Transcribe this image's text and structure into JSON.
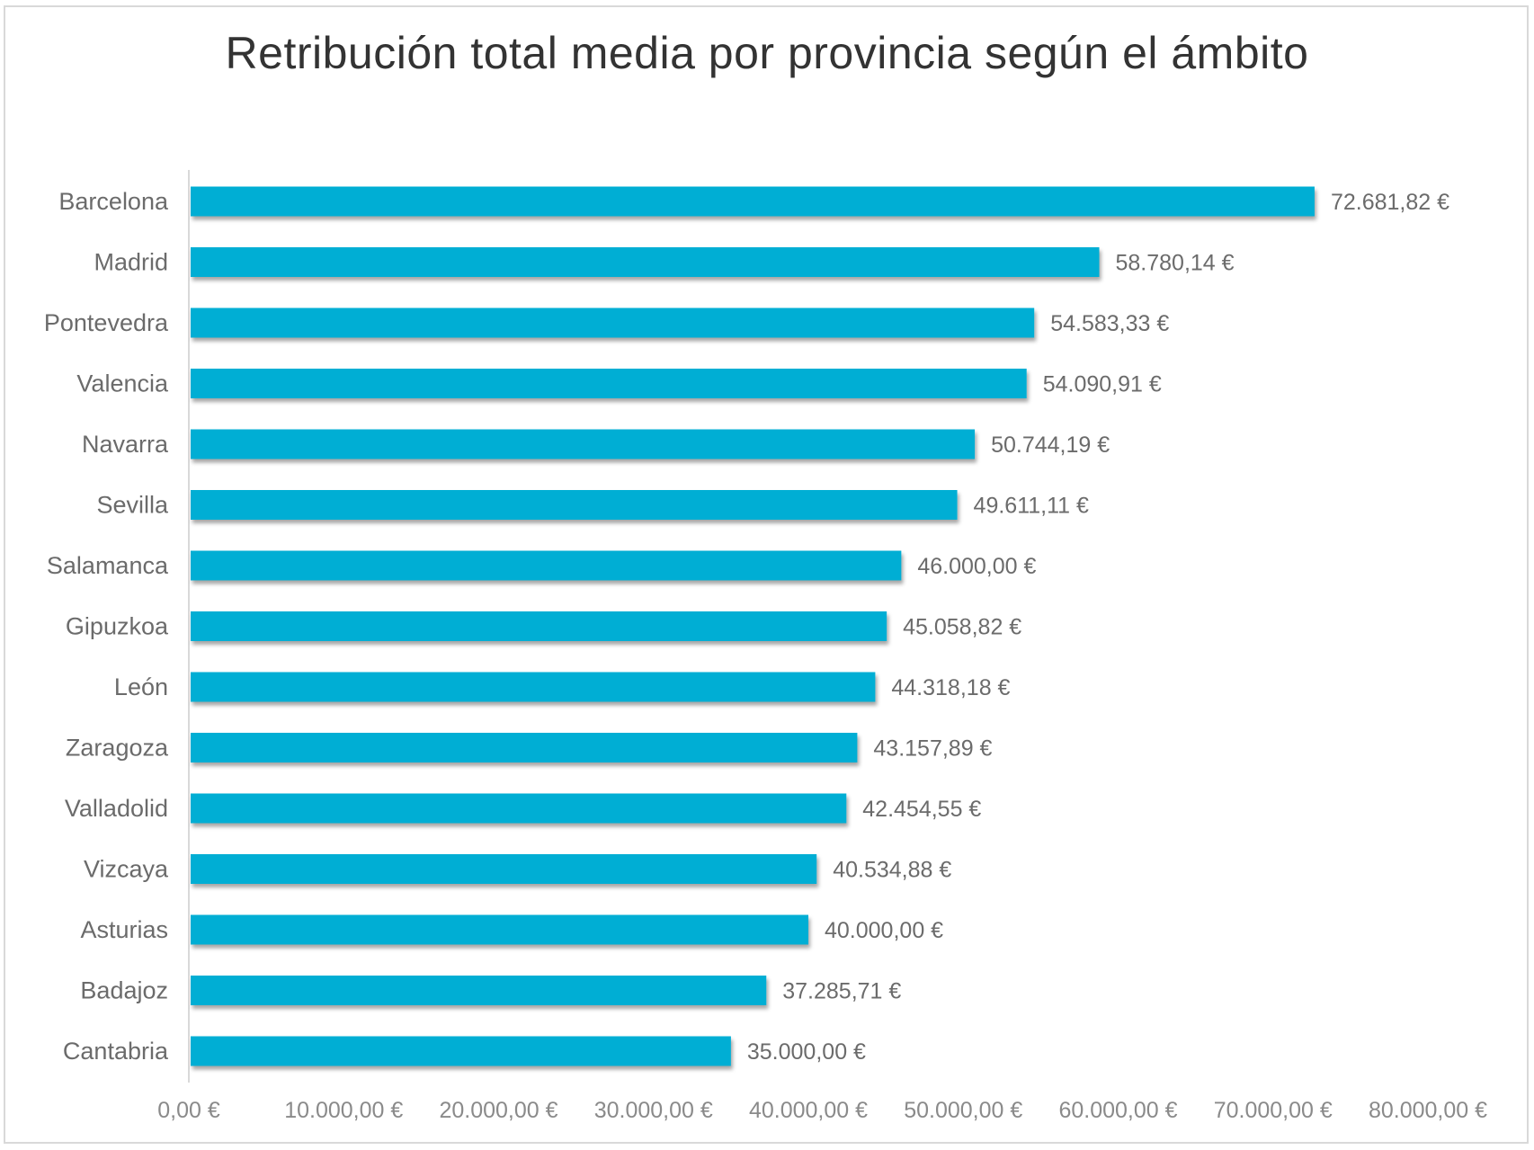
{
  "chart_data": {
    "type": "bar",
    "orientation": "horizontal",
    "title": "Retribución total media por provincia según el ámbito",
    "categories": [
      "Barcelona",
      "Madrid",
      "Pontevedra",
      "Valencia",
      "Navarra",
      "Sevilla",
      "Salamanca",
      "Gipuzkoa",
      "León",
      "Zaragoza",
      "Valladolid",
      "Vizcaya",
      "Asturias",
      "Badajoz",
      "Cantabria"
    ],
    "values": [
      72681.82,
      58780.14,
      54583.33,
      54090.91,
      50744.19,
      49611.11,
      46000.0,
      45058.82,
      44318.18,
      43157.89,
      42454.55,
      40534.88,
      40000.0,
      37285.71,
      35000.0
    ],
    "value_labels": [
      "72.681,82 €",
      "58.780,14 €",
      "54.583,33 €",
      "54.090,91 €",
      "50.744,19 €",
      "49.611,11 €",
      "46.000,00 €",
      "45.058,82 €",
      "44.318,18 €",
      "43.157,89 €",
      "42.454,55 €",
      "40.534,88 €",
      "40.000,00 €",
      "37.285,71 €",
      "35.000,00 €"
    ],
    "xlim": [
      0,
      80000
    ],
    "x_ticks": [
      0,
      10000,
      20000,
      30000,
      40000,
      50000,
      60000,
      70000,
      80000
    ],
    "x_tick_labels": [
      "0,00 €",
      "10.000,00 €",
      "20.000,00 €",
      "30.000,00 €",
      "40.000,00 €",
      "50.000,00 €",
      "60.000,00 €",
      "70.000,00 €",
      "80.000,00 €"
    ],
    "grid": false,
    "legend": "none",
    "bar_color": "#00aed4"
  }
}
